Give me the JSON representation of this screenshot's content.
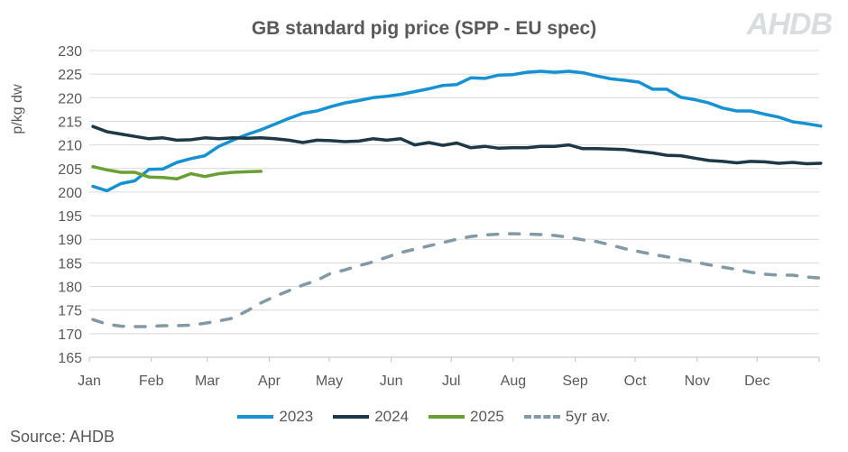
{
  "chart_data": {
    "type": "line",
    "title": "GB standard pig price (SPP - EU spec)",
    "ylabel": "p/kg dw",
    "xlabel": "",
    "ylim": [
      165,
      230
    ],
    "yticks": [
      165,
      170,
      175,
      180,
      185,
      190,
      195,
      200,
      205,
      210,
      215,
      220,
      225,
      230
    ],
    "x_tick_labels": [
      "Jan",
      "Feb",
      "Mar",
      "Apr",
      "May",
      "Jun",
      "Jul",
      "Aug",
      "Sep",
      "Oct",
      "Nov",
      "Dec"
    ],
    "x_unit": "week of year",
    "grid": "horizontal",
    "legend_position": "bottom",
    "series": [
      {
        "name": "2023",
        "color": "#1591d4",
        "dash": false,
        "values": [
          201.2,
          200.3,
          201.8,
          202.4,
          204.8,
          204.9,
          206.3,
          207.1,
          207.7,
          209.7,
          211.0,
          212.2,
          213.2,
          214.4,
          215.6,
          216.7,
          217.2,
          218.1,
          218.9,
          219.4,
          220.0,
          220.3,
          220.7,
          221.3,
          221.9,
          222.6,
          222.8,
          224.2,
          224.1,
          224.8,
          224.9,
          225.4,
          225.6,
          225.4,
          225.6,
          225.3,
          224.6,
          224.0,
          223.7,
          223.3,
          221.8,
          221.8,
          220.1,
          219.6,
          218.9,
          217.8,
          217.2,
          217.2,
          216.5,
          215.9,
          214.9,
          214.5,
          214.0
        ]
      },
      {
        "name": "2024",
        "color": "#1d3847",
        "dash": false,
        "values": [
          213.9,
          212.8,
          212.3,
          211.8,
          211.3,
          211.5,
          211.0,
          211.1,
          211.5,
          211.3,
          211.5,
          211.4,
          211.5,
          211.3,
          211.0,
          210.5,
          211.0,
          210.9,
          210.7,
          210.8,
          211.3,
          211.0,
          211.3,
          210.0,
          210.5,
          209.9,
          210.4,
          209.4,
          209.7,
          209.3,
          209.4,
          209.4,
          209.7,
          209.7,
          210.0,
          209.2,
          209.2,
          209.1,
          209.0,
          208.6,
          208.3,
          207.8,
          207.7,
          207.2,
          206.7,
          206.5,
          206.2,
          206.5,
          206.4,
          206.1,
          206.3,
          206.0,
          206.1
        ]
      },
      {
        "name": "2025",
        "color": "#69a033",
        "dash": false,
        "values": [
          205.4,
          204.7,
          204.2,
          204.2,
          203.2,
          203.1,
          202.8,
          203.9,
          203.3,
          203.9,
          204.2,
          204.3,
          204.4
        ]
      },
      {
        "name": "5yr av.",
        "color": "#8299a6",
        "dash": true,
        "values": [
          173.0,
          172.0,
          171.6,
          171.5,
          171.5,
          171.7,
          171.7,
          171.8,
          172.2,
          172.7,
          173.3,
          174.8,
          176.5,
          177.9,
          179.1,
          180.3,
          181.3,
          182.8,
          183.5,
          184.4,
          185.2,
          186.2,
          187.2,
          187.9,
          188.6,
          189.3,
          190.0,
          190.6,
          190.9,
          191.1,
          191.2,
          191.1,
          191.0,
          190.8,
          190.4,
          189.9,
          189.5,
          188.8,
          188.0,
          187.4,
          186.8,
          186.3,
          185.7,
          185.2,
          184.6,
          184.1,
          183.6,
          183.0,
          182.6,
          182.4,
          182.4,
          182.0,
          181.8
        ]
      }
    ]
  },
  "logo": "AHDB",
  "source": "Source: AHDB"
}
